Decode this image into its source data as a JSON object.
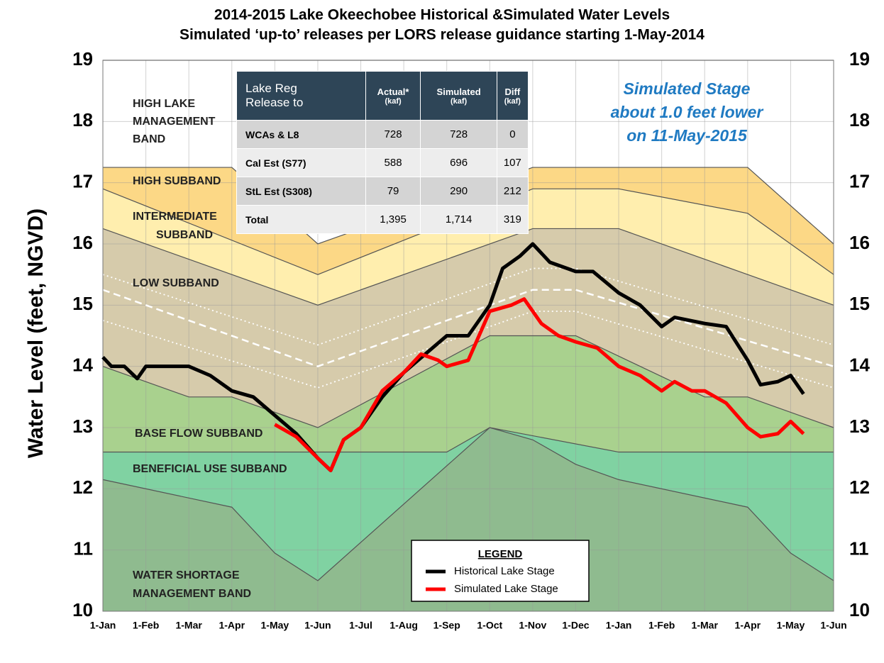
{
  "chart_data": {
    "type": "line",
    "title": "2014-2015 Lake Okeechobee Historical &Simulated Water Levels",
    "subtitle": "Simulated ‘up-to’ releases per LORS release guidance starting 1-May-2014",
    "ylabel": "Water Level (feet, NGVD)",
    "xlim": [
      0,
      17
    ],
    "xticks": [
      {
        "value": 0,
        "label": "1-Jan"
      },
      {
        "value": 1,
        "label": "1-Feb"
      },
      {
        "value": 2,
        "label": "1-Mar"
      },
      {
        "value": 3,
        "label": "1-Apr"
      },
      {
        "value": 4,
        "label": "1-May"
      },
      {
        "value": 5,
        "label": "1-Jun"
      },
      {
        "value": 6,
        "label": "1-Jul"
      },
      {
        "value": 7,
        "label": "1-Aug"
      },
      {
        "value": 8,
        "label": "1-Sep"
      },
      {
        "value": 9,
        "label": "1-Oct"
      },
      {
        "value": 10,
        "label": "1-Nov"
      },
      {
        "value": 11,
        "label": "1-Dec"
      },
      {
        "value": 12,
        "label": "1-Jan"
      },
      {
        "value": 13,
        "label": "1-Feb"
      },
      {
        "value": 14,
        "label": "1-Mar"
      },
      {
        "value": 15,
        "label": "1-Apr"
      },
      {
        "value": 16,
        "label": "1-May"
      },
      {
        "value": 17,
        "label": "1-Jun"
      }
    ],
    "ylim": [
      10,
      19
    ],
    "yticks": [
      10,
      11,
      12,
      13,
      14,
      15,
      16,
      17,
      18,
      19
    ],
    "y2lim": [
      10,
      19
    ],
    "y2ticks": [
      10,
      11,
      12,
      13,
      14,
      15,
      16,
      17,
      18,
      19
    ],
    "grid": true,
    "bands": [
      {
        "label": [
          "WATER SHORTAGE",
          "MANAGEMENT BAND"
        ],
        "color": "#8fbb8f",
        "x": [
          0,
          3,
          4,
          5,
          9,
          10,
          11,
          12,
          15,
          16,
          17
        ],
        "values": [
          12.15,
          11.7,
          10.95,
          10.5,
          13.0,
          12.8,
          12.4,
          12.15,
          11.7,
          10.95,
          10.5
        ]
      },
      {
        "label": [
          "BENEFICIAL USE SUBBAND"
        ],
        "color": "#80d2a2",
        "x": [
          0,
          8,
          9,
          12,
          17
        ],
        "values": [
          12.6,
          12.6,
          13.0,
          12.6,
          12.6
        ]
      },
      {
        "label": [
          "BASE FLOW SUBBAND"
        ],
        "color": "#a9d18e",
        "x": [
          0,
          2,
          3,
          5,
          9,
          11,
          14,
          15,
          17
        ],
        "values": [
          14.0,
          13.5,
          13.5,
          13.0,
          14.5,
          14.5,
          13.5,
          13.5,
          13.0
        ]
      },
      {
        "label": [
          "LOW SUBBAND"
        ],
        "color": "#d6cbab",
        "x": [
          0,
          5,
          10,
          12,
          17
        ],
        "values": [
          16.25,
          15.0,
          16.25,
          16.25,
          15.0
        ]
      },
      {
        "label": [
          "INTERMEDIATE",
          "SUBBAND"
        ],
        "color": "#ffeeae",
        "x": [
          0,
          5,
          10,
          12,
          15,
          17
        ],
        "values": [
          16.9,
          15.5,
          16.9,
          16.9,
          16.5,
          15.5
        ]
      },
      {
        "label": [
          "HIGH SUBBAND"
        ],
        "color": "#fcd886",
        "x": [
          0,
          3,
          5,
          10,
          15,
          17
        ],
        "values": [
          17.25,
          17.25,
          16.0,
          17.25,
          17.25,
          16.0
        ]
      },
      {
        "label": [
          "HIGH LAKE",
          "MANAGEMENT",
          "BAND"
        ],
        "color": "#ffffff",
        "x": [
          0,
          17
        ],
        "values": [
          19,
          19
        ]
      }
    ],
    "guide_lines": [
      {
        "style": "dashed",
        "x": [
          0,
          5,
          10,
          11,
          17
        ],
        "values": [
          15.25,
          14.0,
          15.25,
          15.25,
          14.0
        ]
      },
      {
        "style": "dotted",
        "x": [
          0,
          5,
          10,
          11,
          17
        ],
        "values": [
          15.5,
          14.35,
          15.6,
          15.6,
          14.35
        ]
      },
      {
        "style": "dotted",
        "x": [
          0,
          5,
          10,
          11,
          17
        ],
        "values": [
          14.75,
          13.65,
          14.9,
          14.9,
          13.65
        ]
      }
    ],
    "series": [
      {
        "name": "Historical Lake Stage",
        "color": "#000000",
        "x": [
          0,
          0.2,
          0.5,
          0.8,
          1,
          1.5,
          2,
          2.5,
          3,
          3.5,
          4,
          4.5,
          5,
          5.3,
          5.6,
          6,
          6.5,
          7,
          7.5,
          8,
          8.5,
          9,
          9.3,
          9.7,
          10,
          10.4,
          11,
          11.4,
          12,
          12.5,
          13,
          13.3,
          14,
          14.5,
          15,
          15.3,
          15.7,
          16,
          16.3
        ],
        "values": [
          14.15,
          14.0,
          14.0,
          13.8,
          14.0,
          14.0,
          14.0,
          13.85,
          13.6,
          13.5,
          13.2,
          12.9,
          12.5,
          12.3,
          12.8,
          13.0,
          13.5,
          13.9,
          14.2,
          14.5,
          14.5,
          15.0,
          15.6,
          15.8,
          16.0,
          15.7,
          15.55,
          15.55,
          15.2,
          15.0,
          14.65,
          14.8,
          14.7,
          14.65,
          14.1,
          13.7,
          13.75,
          13.85,
          13.55
        ]
      },
      {
        "name": "Simulated Lake Stage",
        "color": "#ff0000",
        "x": [
          4,
          4.5,
          5,
          5.3,
          5.6,
          6,
          6.5,
          7,
          7.4,
          7.8,
          8,
          8.5,
          9,
          9.5,
          9.8,
          10.2,
          10.6,
          11,
          11.5,
          12,
          12.5,
          13,
          13.3,
          13.7,
          14,
          14.5,
          15,
          15.3,
          15.7,
          16,
          16.3
        ],
        "values": [
          13.05,
          12.85,
          12.5,
          12.3,
          12.8,
          13.0,
          13.6,
          13.9,
          14.2,
          14.1,
          14.0,
          14.1,
          14.9,
          15.0,
          15.1,
          14.7,
          14.5,
          14.4,
          14.3,
          14.0,
          13.85,
          13.6,
          13.75,
          13.6,
          13.6,
          13.4,
          13.0,
          12.85,
          12.9,
          13.1,
          12.9
        ]
      }
    ],
    "legend_title": "LEGEND",
    "annotation": [
      "Simulated Stage",
      "about 1.0 feet lower",
      "on 11-May-2015"
    ],
    "table": {
      "header": [
        [
          "Lake Reg",
          "Release to"
        ],
        [
          "Actual*",
          "(kaf)"
        ],
        [
          "Simulated",
          "(kaf)"
        ],
        [
          "Diff",
          "(kaf)"
        ]
      ],
      "rows": [
        [
          "WCAs & L8",
          "728",
          "728",
          "0"
        ],
        [
          "Cal Est (S77)",
          "588",
          "696",
          "107"
        ],
        [
          "StL Est (S308)",
          "79",
          "290",
          "212"
        ],
        [
          "Total",
          "1,395",
          "1,714",
          "319"
        ]
      ]
    }
  }
}
